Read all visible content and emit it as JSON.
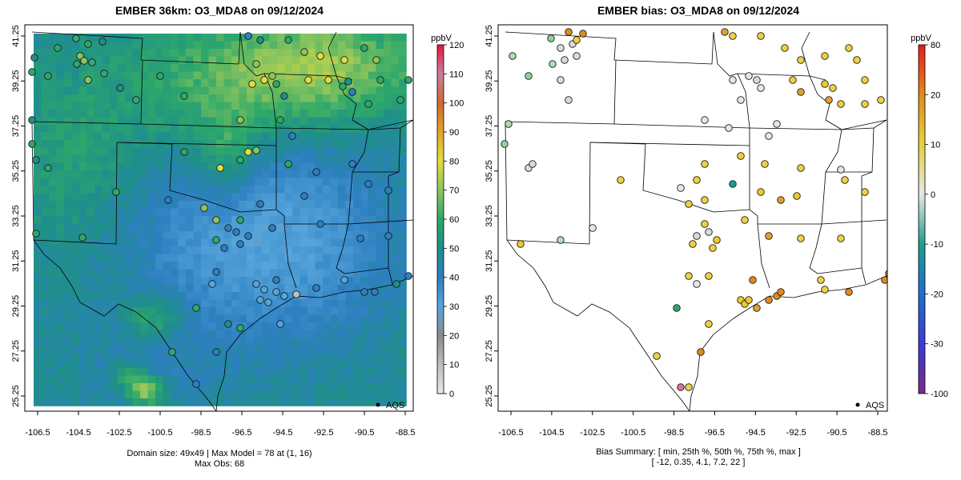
{
  "left_panel": {
    "title": "EMBER 36km: O3_MDA8 on 09/12/2024",
    "colorbar": {
      "unit": "ppbV",
      "ticks": [
        "0",
        "10",
        "20",
        "30",
        "40",
        "50",
        "60",
        "70",
        "80",
        "90",
        "100",
        "110",
        "120"
      ],
      "colors": [
        "#e8e8e8",
        "#bdbdbd",
        "#8c8c8c",
        "#56a5dc",
        "#2d7fc0",
        "#1f8f8a",
        "#2ea86a",
        "#8cc55c",
        "#e3dc3d",
        "#e3a42a",
        "#cf6a30",
        "#c77ea0",
        "#e8163a"
      ]
    },
    "x_ticks": [
      "-106.5",
      "-104.5",
      "-102.5",
      "-100.5",
      "-98.5",
      "-96.5",
      "-94.5",
      "-92.5",
      "-90.5",
      "-88.5"
    ],
    "y_ticks": [
      "25.25",
      "27.25",
      "29.25",
      "31.25",
      "33.25",
      "35.25",
      "37.25",
      "39.25",
      "41.25"
    ],
    "legend_label": "AQS",
    "caption_lines": [
      "Domain size: 49x49 | Max Model = 78 at (1, 16)",
      "Max Obs: 68"
    ]
  },
  "right_panel": {
    "title": "EMBER bias: O3_MDA8 on 09/12/2024",
    "colorbar": {
      "unit": "ppbV",
      "ticks": [
        "-100",
        "-30",
        "-20",
        "-10",
        "0",
        "10",
        "20",
        "80"
      ],
      "colors": [
        "#7a2a8c",
        "#3b3bd6",
        "#1e6fd0",
        "#1f9e8a",
        "#e6e6e6",
        "#e6d23a",
        "#e08a1c",
        "#e81a1a"
      ]
    },
    "x_ticks": [
      "-106.5",
      "-104.5",
      "-102.5",
      "-100.5",
      "-98.5",
      "-96.5",
      "-94.5",
      "-92.5",
      "-90.5",
      "-88.5"
    ],
    "y_ticks": [
      "25.25",
      "27.25",
      "29.25",
      "31.25",
      "33.25",
      "35.25",
      "37.25",
      "39.25",
      "41.25"
    ],
    "legend_label": "AQS",
    "caption_lines": [
      "Bias Summary: [ min, 25th %, 50th %, 75th %, max ]",
      "[ -12,   0.35,   4.1,   7.2,   22 ]"
    ]
  }
}
